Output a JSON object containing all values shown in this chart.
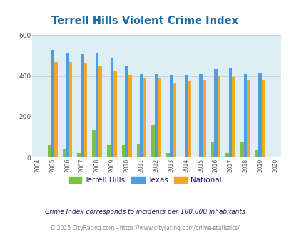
{
  "title": "Terrell Hills Violent Crime Index",
  "years": [
    2004,
    2005,
    2006,
    2007,
    2008,
    2009,
    2010,
    2011,
    2012,
    2013,
    2014,
    2015,
    2016,
    2017,
    2018,
    2019,
    2020
  ],
  "terrell_hills": [
    0,
    65,
    42,
    20,
    135,
    62,
    62,
    68,
    160,
    20,
    0,
    0,
    75,
    20,
    75,
    38,
    0
  ],
  "texas": [
    0,
    530,
    515,
    508,
    510,
    490,
    450,
    408,
    408,
    402,
    405,
    410,
    435,
    440,
    408,
    418,
    0
  ],
  "national": [
    0,
    470,
    470,
    465,
    452,
    427,
    402,
    388,
    390,
    365,
    375,
    383,
    400,
    397,
    382,
    379,
    0
  ],
  "bar_width": 0.22,
  "color_terrell": "#7bc142",
  "color_texas": "#4d9de0",
  "color_national": "#f5a623",
  "bg_color": "#ddeef4",
  "ylim": [
    0,
    600
  ],
  "yticks": [
    0,
    200,
    400,
    600
  ],
  "footnote1": "Crime Index corresponds to incidents per 100,000 inhabitants",
  "footnote2": "© 2025 CityRating.com - https://www.cityrating.com/crime-statistics/",
  "title_color": "#1a6aa5",
  "footnote1_color": "#1a1a6e",
  "footnote2_color": "#888888",
  "legend_text_color": "#1a1a6e"
}
